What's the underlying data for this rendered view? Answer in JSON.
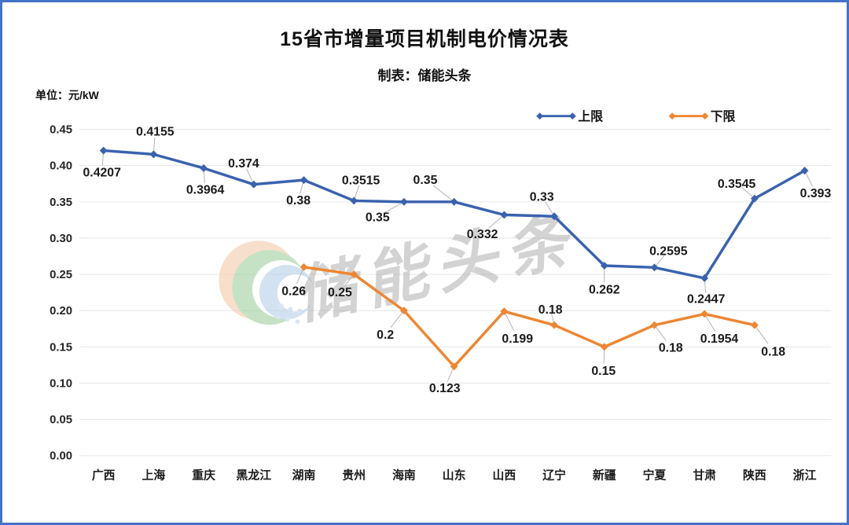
{
  "page": {
    "title": "15省市增量项目机制电价情况表",
    "subtitle": "制表：储能头条",
    "unit_label": "单位：元/kW",
    "watermark_text": "储能头条"
  },
  "chart_data": {
    "type": "line",
    "title": "15省市增量项目机制电价情况表",
    "subtitle": "制表：储能头条",
    "ylabel": "单位：元/kW",
    "categories": [
      "广西",
      "上海",
      "重庆",
      "黑龙江",
      "湖南",
      "贵州",
      "海南",
      "山东",
      "山西",
      "辽宁",
      "新疆",
      "宁夏",
      "甘肃",
      "陕西",
      "浙江"
    ],
    "series": [
      {
        "name": "上限",
        "color": "#3A62AE",
        "marker": "diamond",
        "values": [
          0.4207,
          0.4155,
          0.3964,
          0.374,
          0.38,
          0.3515,
          0.35,
          0.35,
          0.332,
          0.33,
          0.262,
          0.2595,
          0.2447,
          0.3545,
          0.393
        ]
      },
      {
        "name": "下限",
        "color": "#ED8633",
        "marker": "diamond",
        "values": [
          null,
          null,
          null,
          null,
          0.26,
          0.25,
          0.2,
          0.123,
          0.199,
          0.18,
          0.15,
          0.18,
          0.1954,
          0.18,
          null
        ]
      }
    ],
    "ylim": [
      0,
      0.45
    ],
    "ytick_step": 0.05,
    "yticks": [
      "0.00",
      "0.05",
      "0.10",
      "0.15",
      "0.20",
      "0.25",
      "0.30",
      "0.35",
      "0.40",
      "0.45"
    ],
    "grid": "horizontal",
    "legend_position": "top-right",
    "data_labels": true,
    "colors": {
      "border": "#4472C4",
      "gridline": "#e6e6e6",
      "label_text": "#1a1a1a",
      "leader_line": "#b3b3b3",
      "watermark_gray": "#a9a9a9"
    }
  }
}
